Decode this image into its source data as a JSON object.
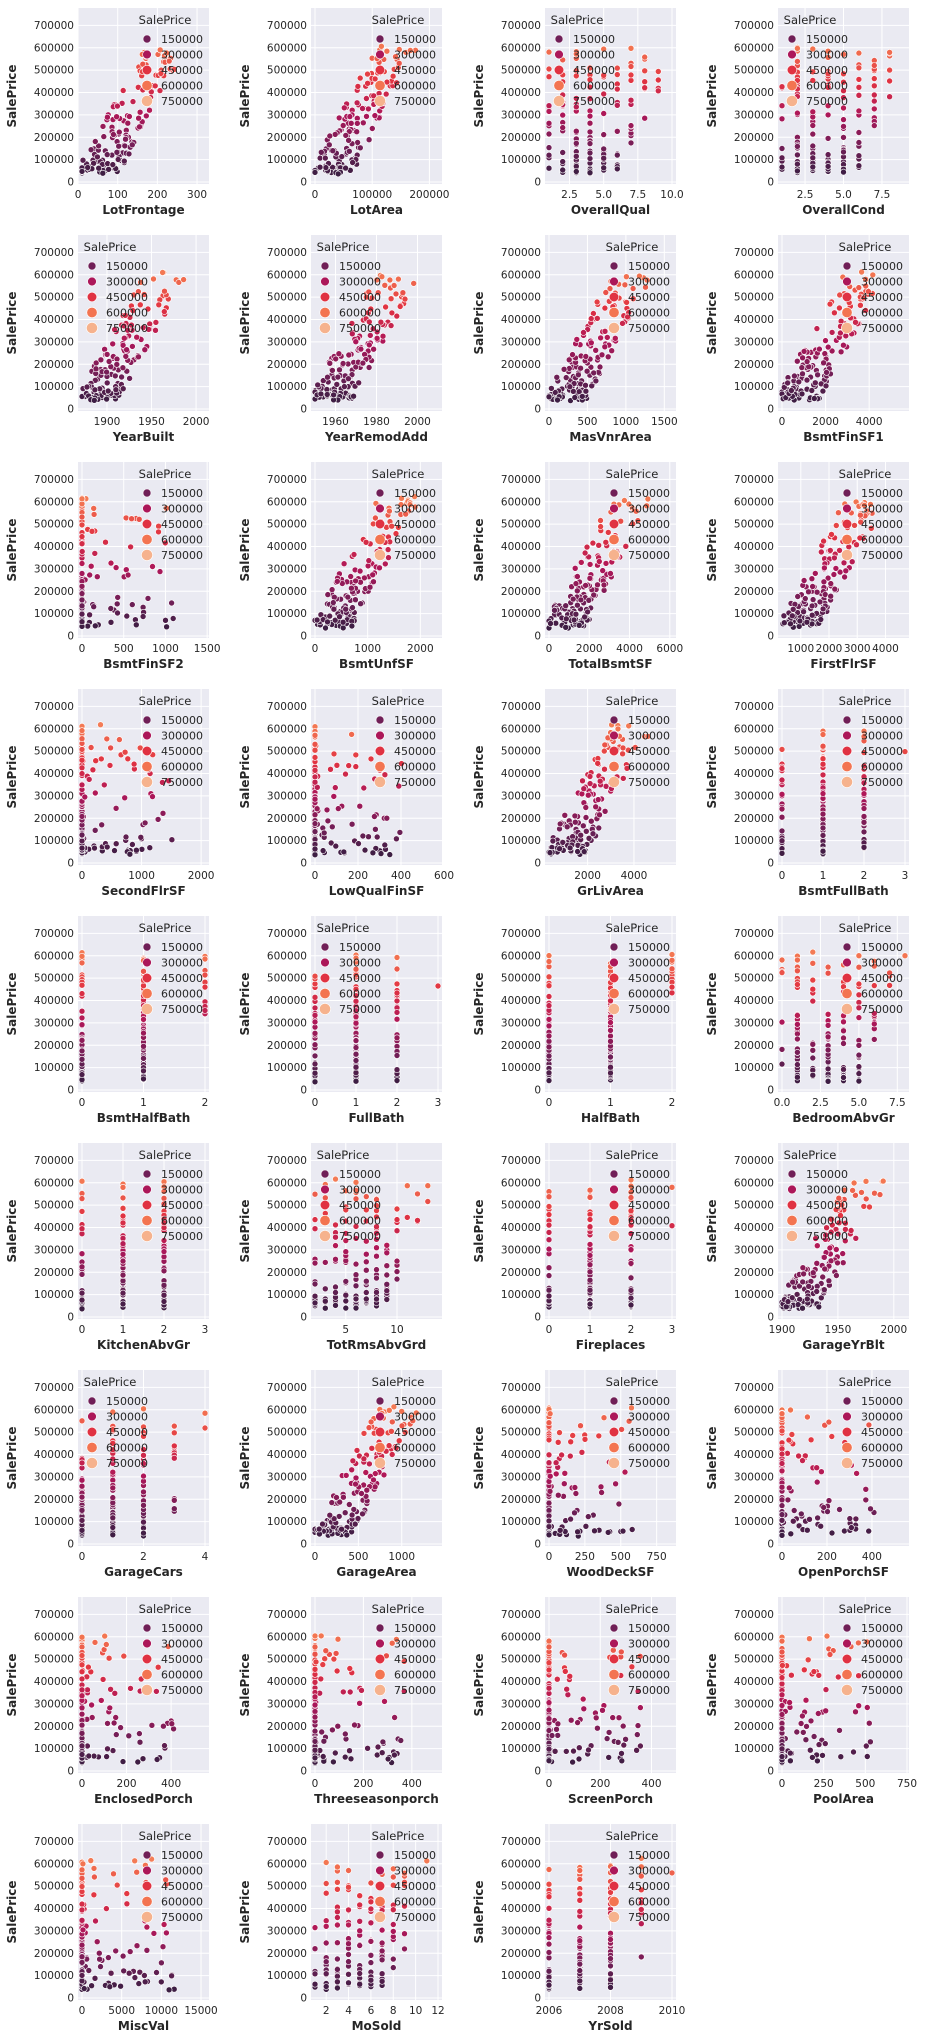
{
  "chart_data": {
    "type": "scatter",
    "y_label": "SalePrice",
    "y_ticks": [
      0,
      100000,
      200000,
      300000,
      400000,
      500000,
      600000,
      700000
    ],
    "ylim": [
      0,
      760000
    ],
    "grid": true,
    "legend": {
      "title": "SalePrice",
      "entries": [
        "150000",
        "300000",
        "450000",
        "600000",
        "750000"
      ]
    },
    "hue_colors": [
      "#2c1e3d",
      "#701f57",
      "#ad1759",
      "#e13342",
      "#f37651",
      "#f6b48f"
    ],
    "panels": [
      {
        "feature": "LotFrontage",
        "xlim": [
          10,
          320
        ],
        "x_ticks": [
          0,
          100,
          200,
          300
        ],
        "legend_pos": "top-right",
        "shape": "linear"
      },
      {
        "feature": "LotArea",
        "xlim": [
          0,
          215000
        ],
        "x_ticks": [
          0,
          100000,
          200000
        ],
        "legend_pos": "top-right",
        "shape": "linear"
      },
      {
        "feature": "OverallQual",
        "xlim": [
          1,
          10
        ],
        "x_ticks": [
          "2.5",
          "5.0",
          "7.5",
          "10.0"
        ],
        "legend_pos": "top-left",
        "shape": "discrete"
      },
      {
        "feature": "OverallCond",
        "xlim": [
          1,
          9
        ],
        "x_ticks": [
          "2.5",
          "5.0",
          "7.5"
        ],
        "legend_pos": "top-left",
        "shape": "discrete"
      },
      {
        "feature": "YearBuilt",
        "xlim": [
          1872,
          2010
        ],
        "x_ticks": [
          1900,
          1950,
          2000
        ],
        "legend_pos": "top-left",
        "shape": "linear"
      },
      {
        "feature": "YearRemodAdd",
        "xlim": [
          1950,
          2010
        ],
        "x_ticks": [
          1960,
          1980,
          2000
        ],
        "legend_pos": "top-left",
        "shape": "linear"
      },
      {
        "feature": "MasVnrArea",
        "xlim": [
          0,
          1600
        ],
        "x_ticks": [
          0,
          500,
          1000,
          1500
        ],
        "legend_pos": "top-right",
        "shape": "linear"
      },
      {
        "feature": "BsmtFinSF1",
        "xlim": [
          0,
          5644
        ],
        "x_ticks": [
          0,
          2000,
          4000
        ],
        "legend_pos": "top-right",
        "shape": "linear"
      },
      {
        "feature": "BsmtFinSF2",
        "xlim": [
          0,
          1474
        ],
        "x_ticks": [
          0,
          500,
          1000,
          1500
        ],
        "legend_pos": "top-right",
        "shape": "zerolinear"
      },
      {
        "feature": "BsmtUnfSF",
        "xlim": [
          0,
          2336
        ],
        "x_ticks": [
          0,
          1000,
          2000
        ],
        "legend_pos": "top-right",
        "shape": "linear"
      },
      {
        "feature": "TotalBsmtSF",
        "xlim": [
          0,
          6110
        ],
        "x_ticks": [
          0,
          2000,
          4000,
          6000
        ],
        "legend_pos": "top-right",
        "shape": "linear"
      },
      {
        "feature": "FirstFlrSF",
        "xlim": [
          334,
          4692
        ],
        "x_ticks": [
          1000,
          2000,
          3000,
          4000
        ],
        "legend_pos": "top-right",
        "shape": "linear"
      },
      {
        "feature": "SecondFlrSF",
        "xlim": [
          0,
          2065
        ],
        "x_ticks": [
          0,
          1000,
          2000
        ],
        "legend_pos": "top-right",
        "shape": "zerolinear"
      },
      {
        "feature": "LowQualFinSF",
        "xlim": [
          0,
          572
        ],
        "x_ticks": [
          0,
          200,
          400,
          600
        ],
        "legend_pos": "top-right",
        "shape": "zerolinear"
      },
      {
        "feature": "GrLivArea",
        "xlim": [
          334,
          5642
        ],
        "x_ticks": [
          2000,
          4000
        ],
        "legend_pos": "top-right",
        "shape": "linear"
      },
      {
        "feature": "BsmtFullBath",
        "xlim": [
          0,
          3
        ],
        "x_ticks": [
          0,
          1,
          2,
          3
        ],
        "legend_pos": "top-right",
        "shape": "discrete"
      },
      {
        "feature": "BsmtHalfBath",
        "xlim": [
          0,
          2
        ],
        "x_ticks": [
          0,
          1,
          2
        ],
        "legend_pos": "top-right",
        "shape": "discrete"
      },
      {
        "feature": "FullBath",
        "xlim": [
          0,
          3
        ],
        "x_ticks": [
          0,
          1,
          2,
          3
        ],
        "legend_pos": "top-left",
        "shape": "discrete"
      },
      {
        "feature": "HalfBath",
        "xlim": [
          0,
          2
        ],
        "x_ticks": [
          0,
          1,
          2
        ],
        "legend_pos": "top-right",
        "shape": "discrete"
      },
      {
        "feature": "BedroomAbvGr",
        "xlim": [
          0,
          8
        ],
        "x_ticks": [
          "0.0",
          "2.5",
          "5.0",
          "7.5"
        ],
        "legend_pos": "top-right",
        "shape": "discrete"
      },
      {
        "feature": "KitchenAbvGr",
        "xlim": [
          0,
          3
        ],
        "x_ticks": [
          0,
          1,
          2,
          3
        ],
        "legend_pos": "top-right",
        "shape": "discrete"
      },
      {
        "feature": "TotRmsAbvGrd",
        "xlim": [
          2,
          14
        ],
        "x_ticks": [
          5,
          10
        ],
        "legend_pos": "top-left",
        "shape": "discrete"
      },
      {
        "feature": "Fireplaces",
        "xlim": [
          0,
          3
        ],
        "x_ticks": [
          0,
          1,
          2,
          3
        ],
        "legend_pos": "top-right",
        "shape": "discrete"
      },
      {
        "feature": "GarageYrBlt",
        "xlim": [
          1900,
          2010
        ],
        "x_ticks": [
          1900,
          1950,
          2000
        ],
        "legend_pos": "top-left",
        "shape": "linear"
      },
      {
        "feature": "GarageCars",
        "xlim": [
          0,
          4
        ],
        "x_ticks": [
          0,
          2,
          4
        ],
        "legend_pos": "top-left",
        "shape": "discrete"
      },
      {
        "feature": "GarageArea",
        "xlim": [
          0,
          1418
        ],
        "x_ticks": [
          0,
          500,
          1000
        ],
        "legend_pos": "top-right",
        "shape": "linear"
      },
      {
        "feature": "WoodDeckSF",
        "xlim": [
          0,
          857
        ],
        "x_ticks": [
          0,
          250,
          500,
          750
        ],
        "legend_pos": "top-right",
        "shape": "zerolinear"
      },
      {
        "feature": "OpenPorchSF",
        "xlim": [
          0,
          547
        ],
        "x_ticks": [
          0,
          200,
          400
        ],
        "legend_pos": "top-right",
        "shape": "zerolinear"
      },
      {
        "feature": "EnclosedPorch",
        "xlim": [
          0,
          552
        ],
        "x_ticks": [
          0,
          200,
          400
        ],
        "legend_pos": "top-right",
        "shape": "zerolinear"
      },
      {
        "feature": "Threeseasonporch",
        "xlim": [
          0,
          508
        ],
        "x_ticks": [
          0,
          200,
          400
        ],
        "legend_pos": "top-right",
        "shape": "zerolinear"
      },
      {
        "feature": "ScreenPorch",
        "xlim": [
          0,
          480
        ],
        "x_ticks": [
          0,
          200,
          400
        ],
        "legend_pos": "top-right",
        "shape": "zerolinear"
      },
      {
        "feature": "PoolArea",
        "xlim": [
          0,
          738
        ],
        "x_ticks": [
          0,
          250,
          500,
          750
        ],
        "legend_pos": "top-right",
        "shape": "zerolinear"
      },
      {
        "feature": "MiscVal",
        "xlim": [
          0,
          15500
        ],
        "x_ticks": [
          0,
          5000,
          10000,
          15000
        ],
        "legend_pos": "top-right",
        "shape": "zerolinear"
      },
      {
        "feature": "MoSold",
        "xlim": [
          1,
          12
        ],
        "x_ticks": [
          2,
          4,
          6,
          8,
          10,
          12
        ],
        "legend_pos": "top-right",
        "shape": "discrete"
      },
      {
        "feature": "YrSold",
        "xlim": [
          2006,
          2010
        ],
        "x_ticks": [
          2006,
          2008,
          2010
        ],
        "legend_pos": "top-right",
        "shape": "discrete"
      }
    ]
  }
}
